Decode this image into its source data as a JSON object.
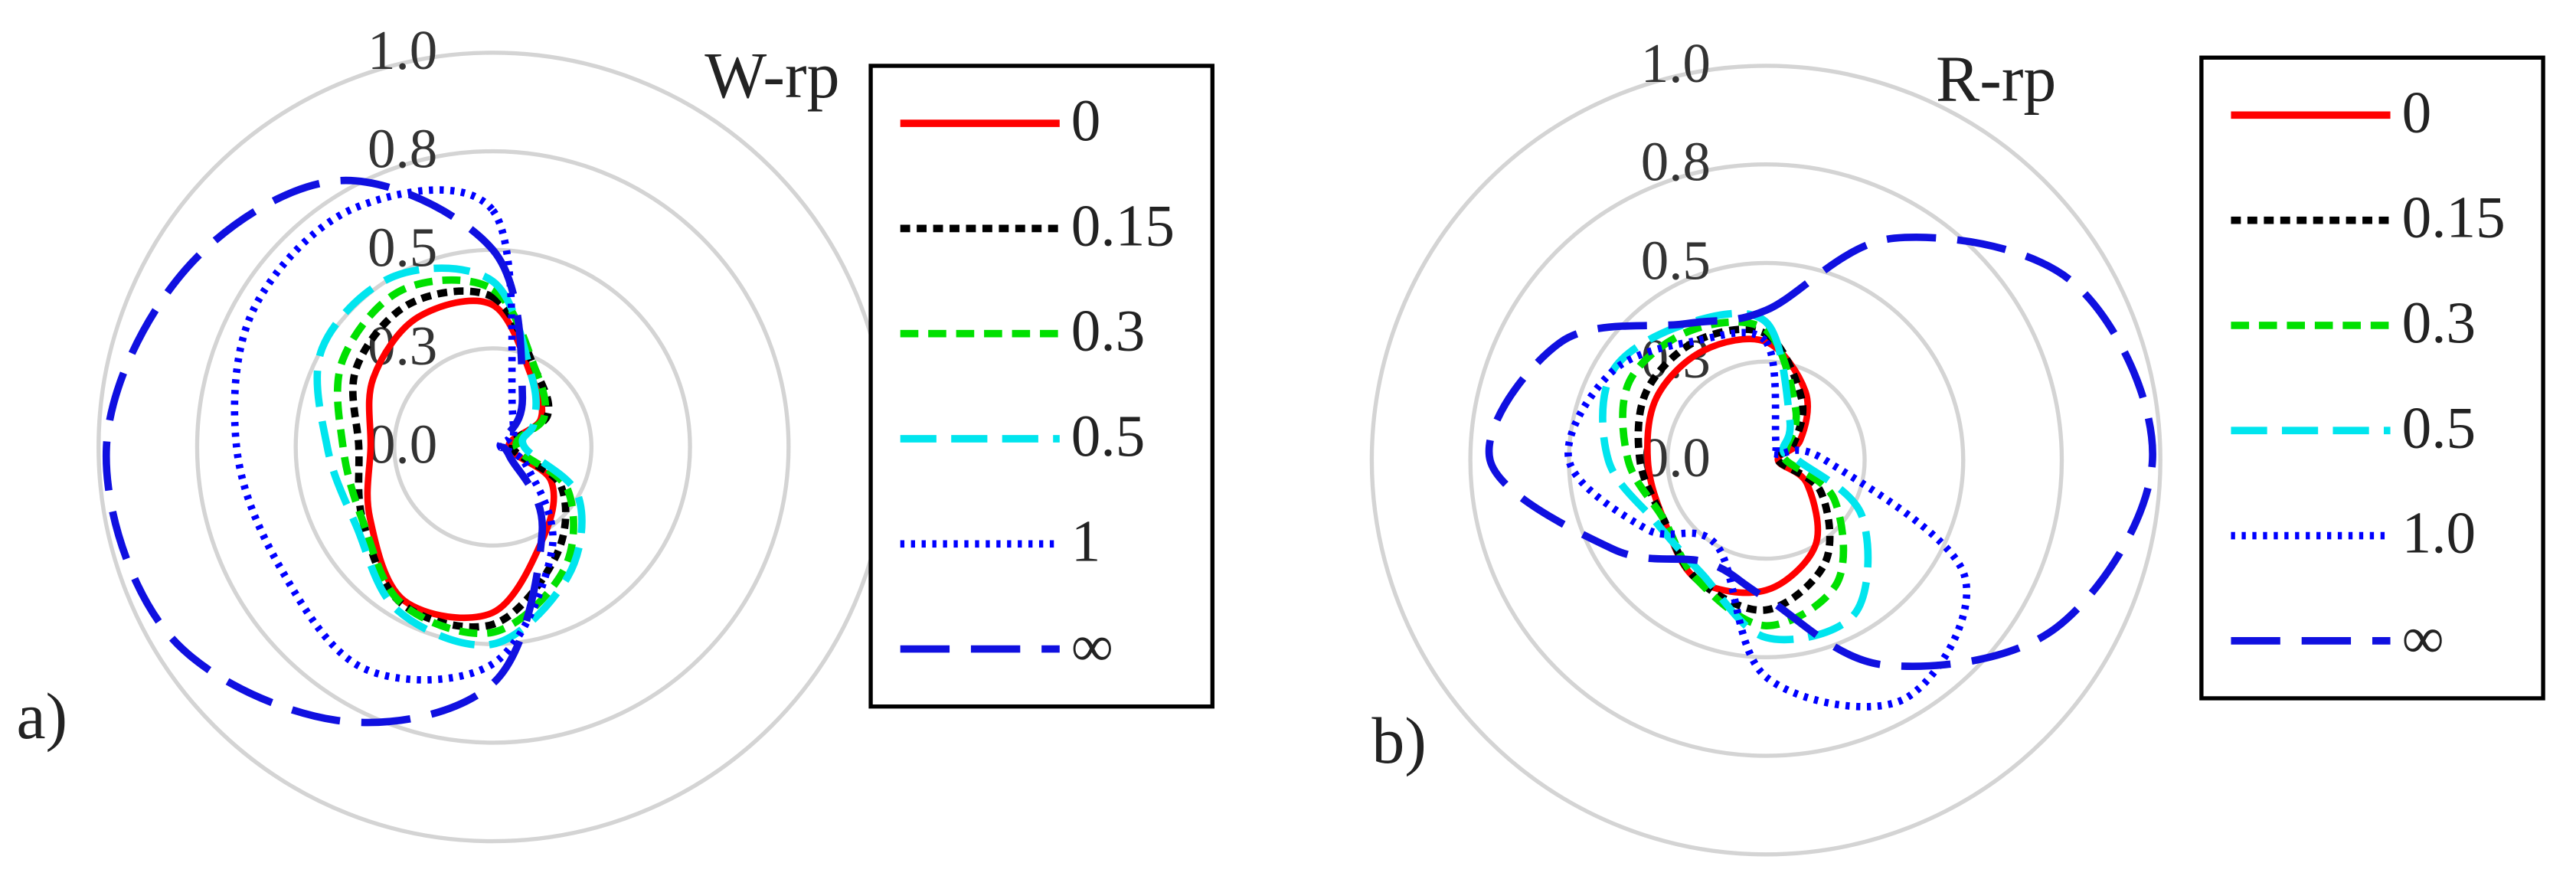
{
  "chart_data": [
    {
      "type": "polar",
      "title": "W-rp",
      "panel_label": "a)",
      "theta": [
        0,
        30,
        60,
        90,
        120,
        150,
        180,
        210,
        240,
        270,
        300,
        330
      ],
      "rlim": [
        0,
        1
      ],
      "rticks": [
        {
          "value": 0,
          "label": "0.0"
        },
        {
          "value": 0.25,
          "label": "0.3"
        },
        {
          "value": 0.5,
          "label": "0.5"
        },
        {
          "value": 0.75,
          "label": "0.8"
        },
        {
          "value": 1,
          "label": "1.0"
        }
      ],
      "grid": true,
      "legend_position": "right",
      "series": [
        {
          "name": "0",
          "color": "#ff0000",
          "dash": "solid",
          "values": [
            0.36,
            0.2,
            0.14,
            0.04,
            0.17,
            0.26,
            0.42,
            0.45,
            0.36,
            0.31,
            0.35,
            0.38
          ]
        },
        {
          "name": "0.15",
          "color": "#000000",
          "dash": "short",
          "values": [
            0.38,
            0.22,
            0.16,
            0.05,
            0.2,
            0.32,
            0.45,
            0.46,
            0.38,
            0.34,
            0.4,
            0.42
          ]
        },
        {
          "name": "0.3",
          "color": "#00e000",
          "dash": "medium",
          "values": [
            0.4,
            0.22,
            0.15,
            0.06,
            0.22,
            0.36,
            0.47,
            0.46,
            0.38,
            0.38,
            0.44,
            0.46
          ]
        },
        {
          "name": "0.5",
          "color": "#00e5ee",
          "dash": "long",
          "values": [
            0.42,
            0.2,
            0.12,
            0.08,
            0.25,
            0.38,
            0.5,
            0.48,
            0.4,
            0.42,
            0.5,
            0.5
          ]
        },
        {
          "name": "1",
          "color": "#0000ff",
          "dash": "dot",
          "values": [
            0.6,
            0.1,
            0.05,
            0.02,
            0.1,
            0.3,
            0.55,
            0.65,
            0.62,
            0.65,
            0.7,
            0.7
          ]
        },
        {
          "name": "∞",
          "color": "#1010e0",
          "dash": "longer",
          "values": [
            0.5,
            0.15,
            0.02,
            0.02,
            0.05,
            0.25,
            0.6,
            0.8,
            0.95,
            0.98,
            0.9,
            0.78
          ]
        }
      ]
    },
    {
      "type": "polar",
      "title": "R-rp",
      "panel_label": "b)",
      "theta": [
        0,
        30,
        60,
        90,
        120,
        150,
        180,
        210,
        240,
        270,
        300,
        330
      ],
      "rlim": [
        0,
        1
      ],
      "rticks": [
        {
          "value": 0,
          "label": "0.0"
        },
        {
          "value": 0.25,
          "label": "0.3"
        },
        {
          "value": 0.5,
          "label": "0.5"
        },
        {
          "value": 0.75,
          "label": "0.8"
        },
        {
          "value": 1,
          "label": "1.0"
        }
      ],
      "grid": true,
      "legend_position": "right",
      "series": [
        {
          "name": "0",
          "color": "#ff0000",
          "dash": "solid",
          "values": [
            0.3,
            0.2,
            0.1,
            0.03,
            0.12,
            0.25,
            0.33,
            0.35,
            0.3,
            0.3,
            0.32,
            0.32
          ]
        },
        {
          "name": "0.15",
          "color": "#000000",
          "dash": "short",
          "values": [
            0.32,
            0.18,
            0.08,
            0.03,
            0.16,
            0.3,
            0.38,
            0.35,
            0.3,
            0.32,
            0.35,
            0.35
          ]
        },
        {
          "name": "0.3",
          "color": "#00e000",
          "dash": "medium",
          "values": [
            0.33,
            0.15,
            0.06,
            0.05,
            0.2,
            0.36,
            0.42,
            0.35,
            0.3,
            0.35,
            0.4,
            0.38
          ]
        },
        {
          "name": "0.5",
          "color": "#00e5ee",
          "dash": "long",
          "values": [
            0.35,
            0.12,
            0.05,
            0.08,
            0.28,
            0.45,
            0.45,
            0.33,
            0.32,
            0.4,
            0.45,
            0.4
          ]
        },
        {
          "name": "1.0",
          "color": "#0000ff",
          "dash": "dot",
          "values": [
            0.3,
            0.05,
            0.03,
            0.15,
            0.58,
            0.7,
            0.55,
            0.25,
            0.35,
            0.5,
            0.45,
            0.35
          ]
        },
        {
          "name": "∞",
          "color": "#1010e0",
          "dash": "longer",
          "values": [
            0.38,
            0.65,
            0.9,
            0.98,
            0.85,
            0.6,
            0.35,
            0.3,
            0.45,
            0.7,
            0.6,
            0.4
          ]
        }
      ]
    }
  ]
}
